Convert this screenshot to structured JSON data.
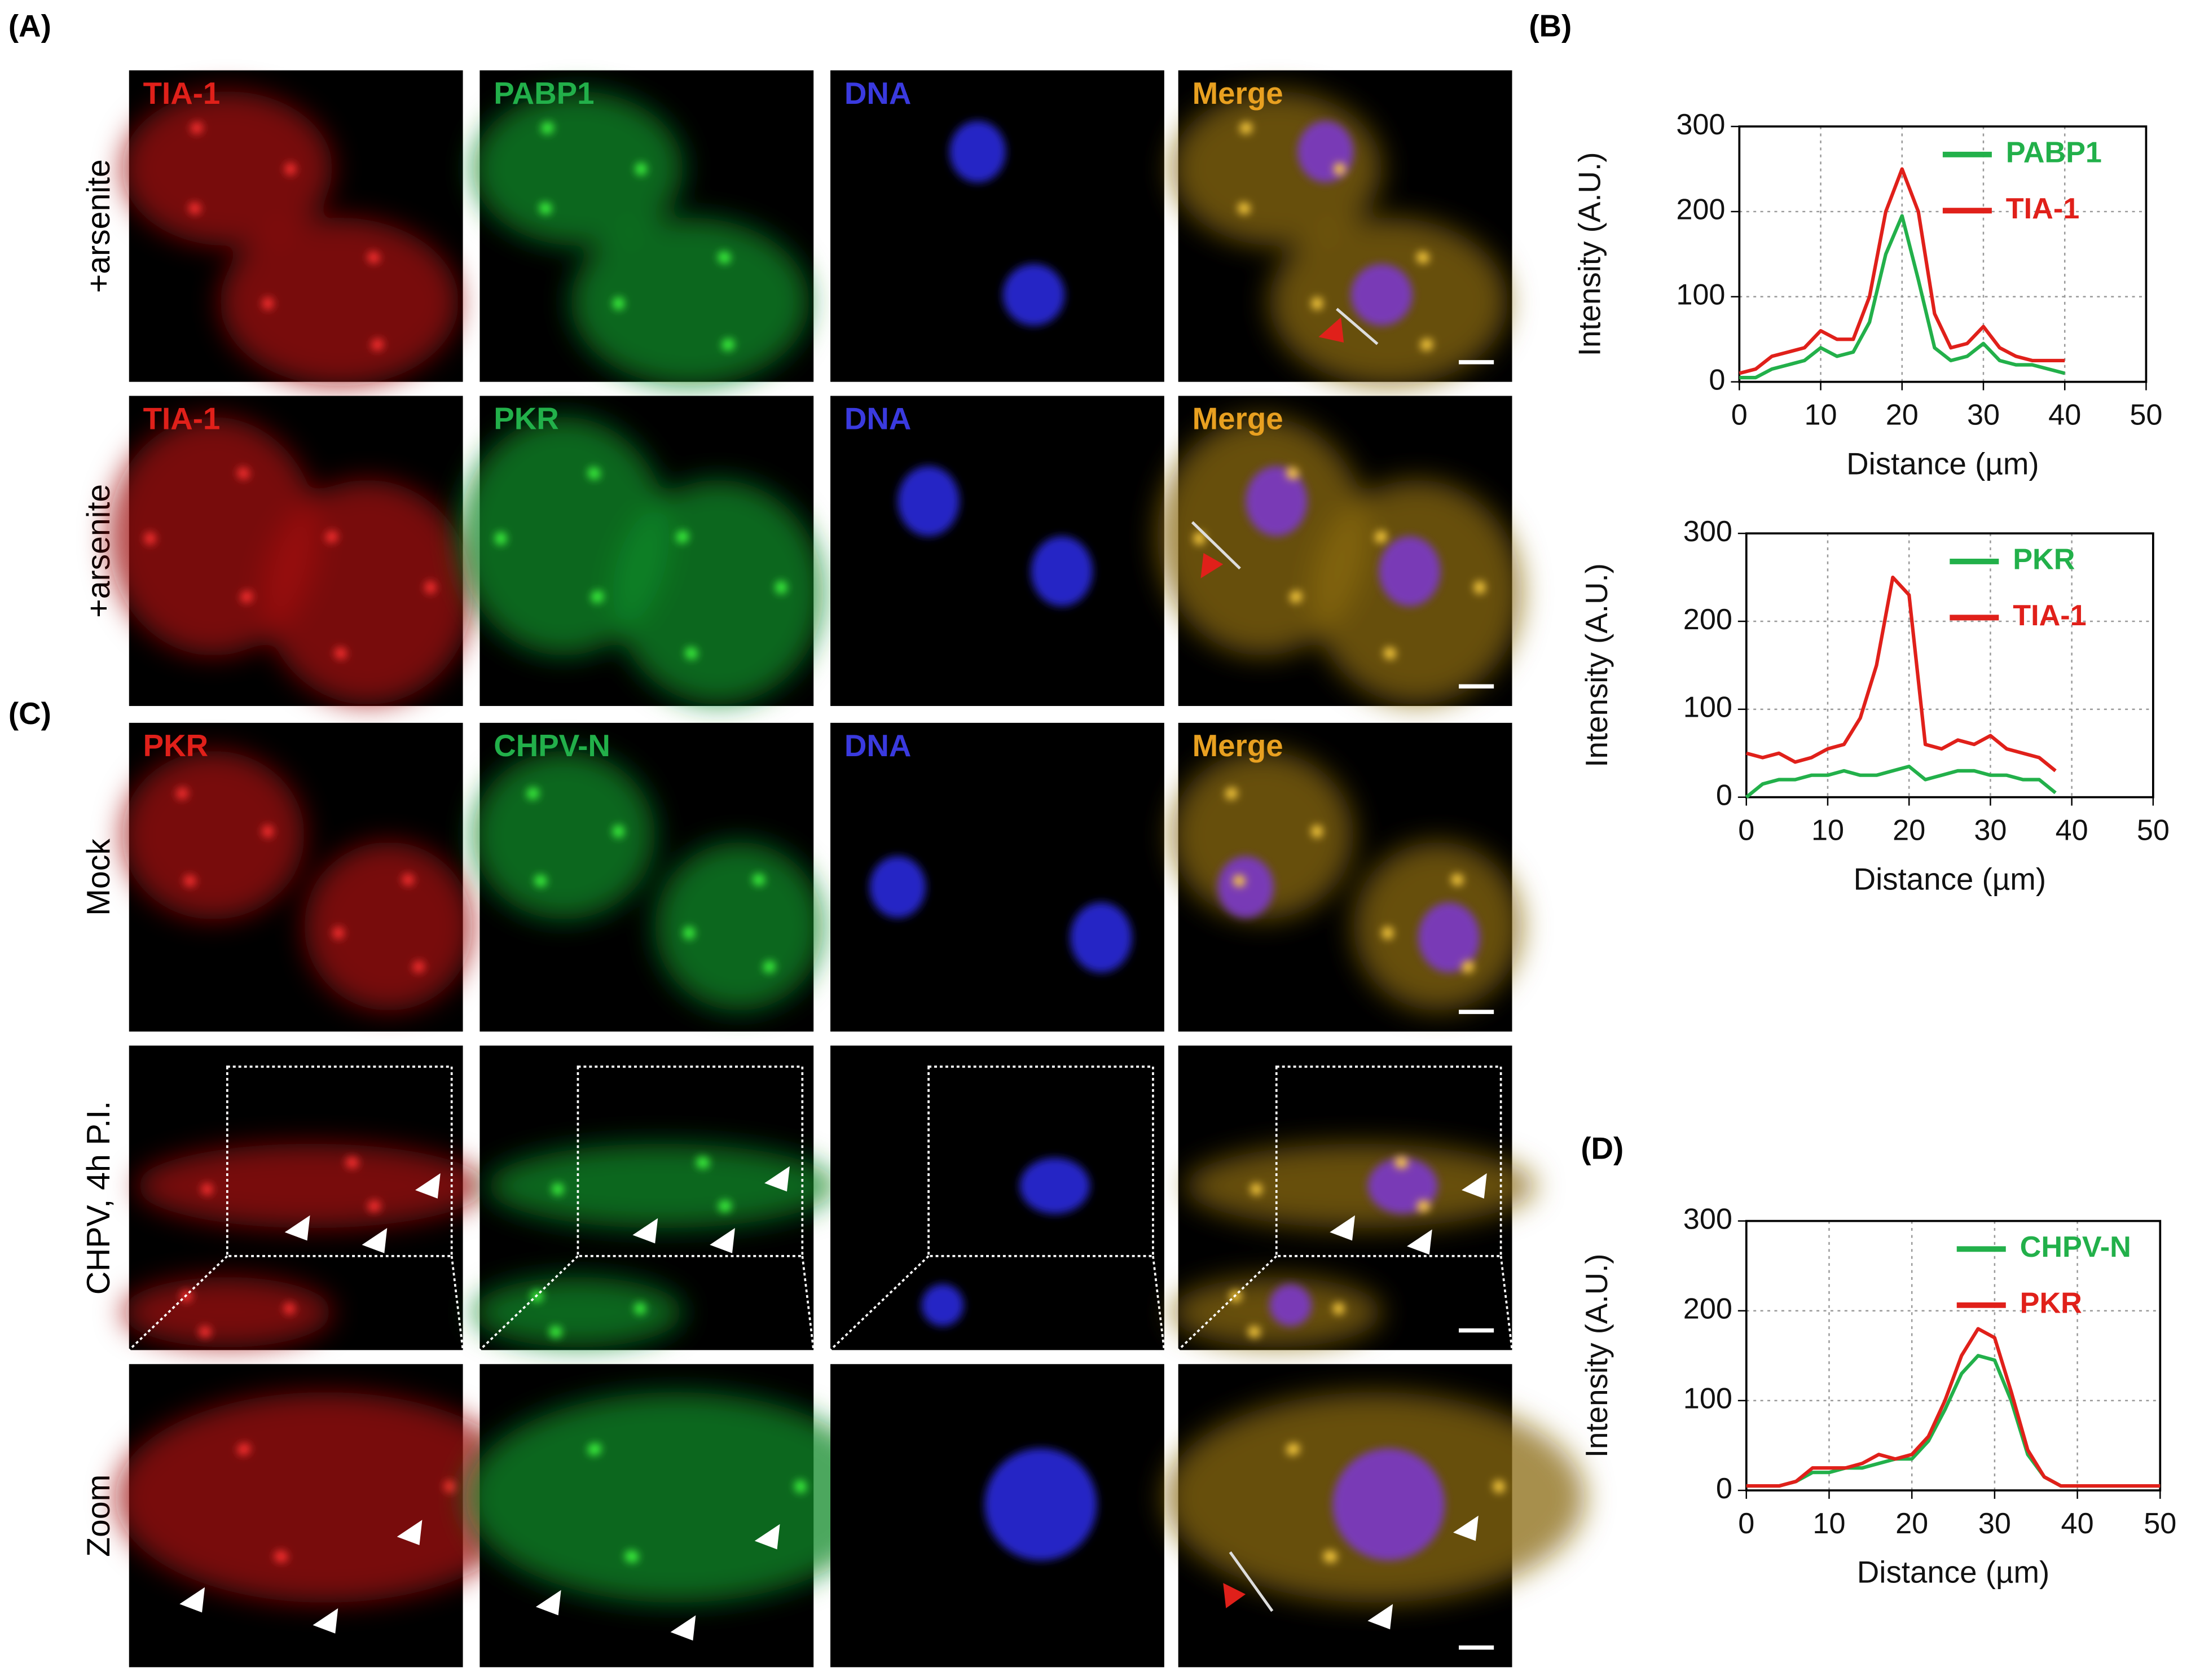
{
  "panel_labels": [
    "(A)",
    "(B)",
    "(C)",
    "(D)"
  ],
  "microscopy": {
    "rows": [
      {
        "label": "+arsenite",
        "channels": [
          "TIA-1",
          "PABP1",
          "DNA",
          "Merge"
        ]
      },
      {
        "label": "+arsenite",
        "channels": [
          "TIA-1",
          "PKR",
          "DNA",
          "Merge"
        ]
      },
      {
        "label": "Mock",
        "channels": [
          "PKR",
          "CHPV-N",
          "DNA",
          "Merge"
        ]
      },
      {
        "label": "CHPV, 4h P.I."
      },
      {
        "label": "Zoom"
      }
    ]
  },
  "chart_data": [
    {
      "type": "line",
      "xlabel": "Distance (µm)",
      "ylabel": "Intensity (A.U.)",
      "x": [
        0,
        2,
        4,
        6,
        8,
        10,
        12,
        14,
        16,
        18,
        20,
        22,
        24,
        26,
        28,
        30,
        32,
        34,
        36,
        38,
        40
      ],
      "series": [
        {
          "name": "PABP1",
          "color": "#22b04a",
          "values": [
            5,
            5,
            15,
            20,
            25,
            40,
            30,
            35,
            70,
            150,
            195,
            120,
            40,
            25,
            30,
            45,
            25,
            20,
            20,
            15,
            10
          ]
        },
        {
          "name": "TIA-1",
          "color": "#e0201a",
          "values": [
            10,
            15,
            30,
            35,
            40,
            60,
            50,
            50,
            100,
            200,
            250,
            200,
            80,
            40,
            45,
            65,
            40,
            30,
            25,
            25,
            25
          ]
        }
      ],
      "xlim": [
        0,
        50
      ],
      "xticks": [
        0,
        10,
        20,
        30,
        40,
        50
      ],
      "ylim": [
        0,
        300
      ],
      "yticks": [
        0,
        100,
        200,
        300
      ],
      "grid": true,
      "legend": "upper right"
    },
    {
      "type": "line",
      "xlabel": "Distance (µm)",
      "ylabel": "Intensity (A.U.)",
      "x": [
        0,
        2,
        4,
        6,
        8,
        10,
        12,
        14,
        16,
        18,
        20,
        22,
        24,
        26,
        28,
        30,
        32,
        34,
        36,
        38
      ],
      "series": [
        {
          "name": "PKR",
          "color": "#22b04a",
          "values": [
            0,
            15,
            20,
            20,
            25,
            25,
            30,
            25,
            25,
            30,
            35,
            20,
            25,
            30,
            30,
            25,
            25,
            20,
            20,
            5
          ]
        },
        {
          "name": "TIA-1",
          "color": "#e0201a",
          "values": [
            50,
            45,
            50,
            40,
            45,
            55,
            60,
            90,
            150,
            250,
            230,
            60,
            55,
            65,
            60,
            70,
            55,
            50,
            45,
            30
          ]
        }
      ],
      "xlim": [
        0,
        50
      ],
      "xticks": [
        0,
        10,
        20,
        30,
        40,
        50
      ],
      "ylim": [
        0,
        300
      ],
      "yticks": [
        0,
        100,
        200,
        300
      ],
      "grid": true,
      "legend": "upper right"
    },
    {
      "type": "line",
      "xlabel": "Distance (µm)",
      "ylabel": "Intensity (A.U.)",
      "x": [
        0,
        2,
        4,
        6,
        8,
        10,
        12,
        14,
        16,
        18,
        20,
        22,
        24,
        26,
        28,
        30,
        32,
        34,
        36,
        38,
        40,
        42,
        44,
        46,
        48,
        50
      ],
      "series": [
        {
          "name": "CHPV-N",
          "color": "#22b04a",
          "values": [
            5,
            5,
            5,
            10,
            20,
            20,
            25,
            25,
            30,
            35,
            35,
            55,
            90,
            130,
            150,
            145,
            100,
            40,
            15,
            5,
            5,
            5,
            5,
            5,
            5,
            5
          ]
        },
        {
          "name": "PKR",
          "color": "#e0201a",
          "values": [
            5,
            5,
            5,
            10,
            25,
            25,
            25,
            30,
            40,
            35,
            40,
            60,
            100,
            150,
            180,
            170,
            110,
            45,
            15,
            5,
            5,
            5,
            5,
            5,
            5,
            5
          ]
        }
      ],
      "xlim": [
        0,
        50
      ],
      "xticks": [
        0,
        10,
        20,
        30,
        40,
        50
      ],
      "ylim": [
        0,
        300
      ],
      "yticks": [
        0,
        100,
        200,
        300
      ],
      "grid": true,
      "legend": "upper right"
    }
  ]
}
